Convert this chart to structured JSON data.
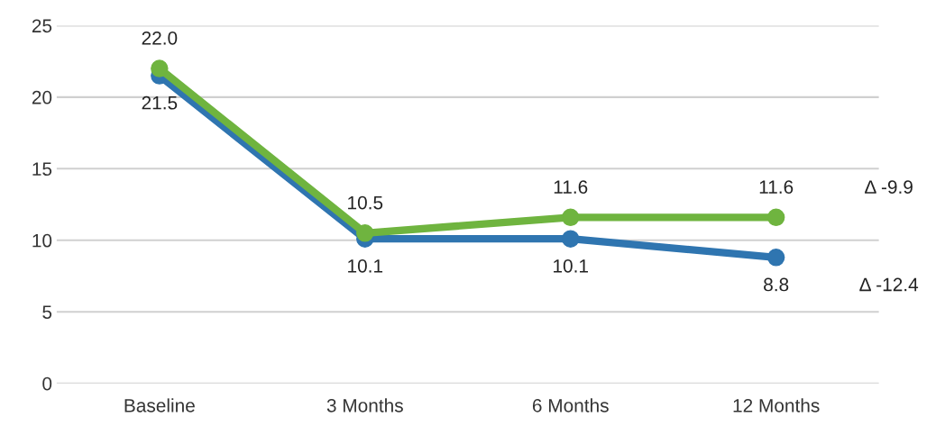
{
  "chart_data": {
    "type": "line",
    "categories": [
      "Baseline",
      "3 Months",
      "6 Months",
      "12 Months"
    ],
    "series": [
      {
        "color": "#6fb43f",
        "values": [
          22.0,
          10.5,
          11.6,
          11.6
        ],
        "value_labels": [
          "22.0",
          "10.5",
          "11.6",
          "11.6"
        ]
      },
      {
        "color": "#2f75b0",
        "values": [
          21.5,
          10.1,
          10.1,
          8.8
        ],
        "value_labels": [
          "21.5",
          "10.1",
          "10.1",
          "8.8"
        ]
      }
    ],
    "ylim": [
      0,
      25
    ],
    "yticks": [
      0,
      5,
      10,
      15,
      20,
      25
    ],
    "grid": "y",
    "marker": "circle",
    "line_style": "solid",
    "annotations": [
      "Δ -9.9",
      "Δ -12.4"
    ]
  }
}
